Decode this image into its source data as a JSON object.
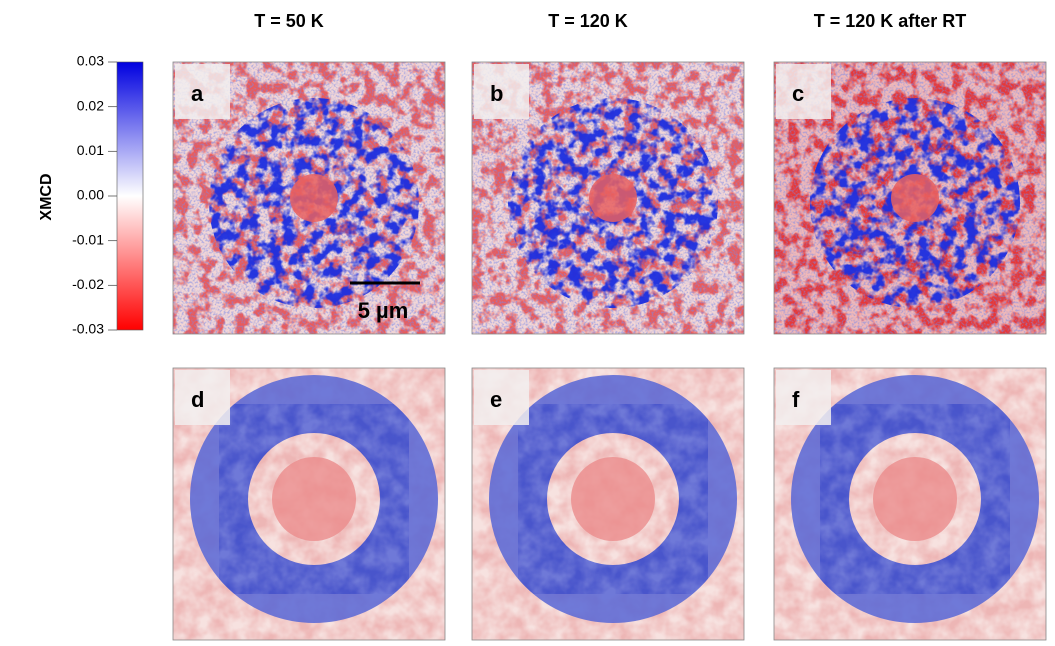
{
  "columns": [
    "T = 50 K",
    "T = 120 K",
    "T = 120 K after RT"
  ],
  "colorbar": {
    "label": "XMCD",
    "ticks": [
      "0.03",
      "0.02",
      "0.01",
      "0.00",
      "-0.01",
      "-0.02",
      "-0.03"
    ]
  },
  "panels": [
    [
      "a",
      "b",
      "c"
    ],
    [
      "d",
      "e",
      "f"
    ]
  ],
  "scale_bar": "5 µm"
}
